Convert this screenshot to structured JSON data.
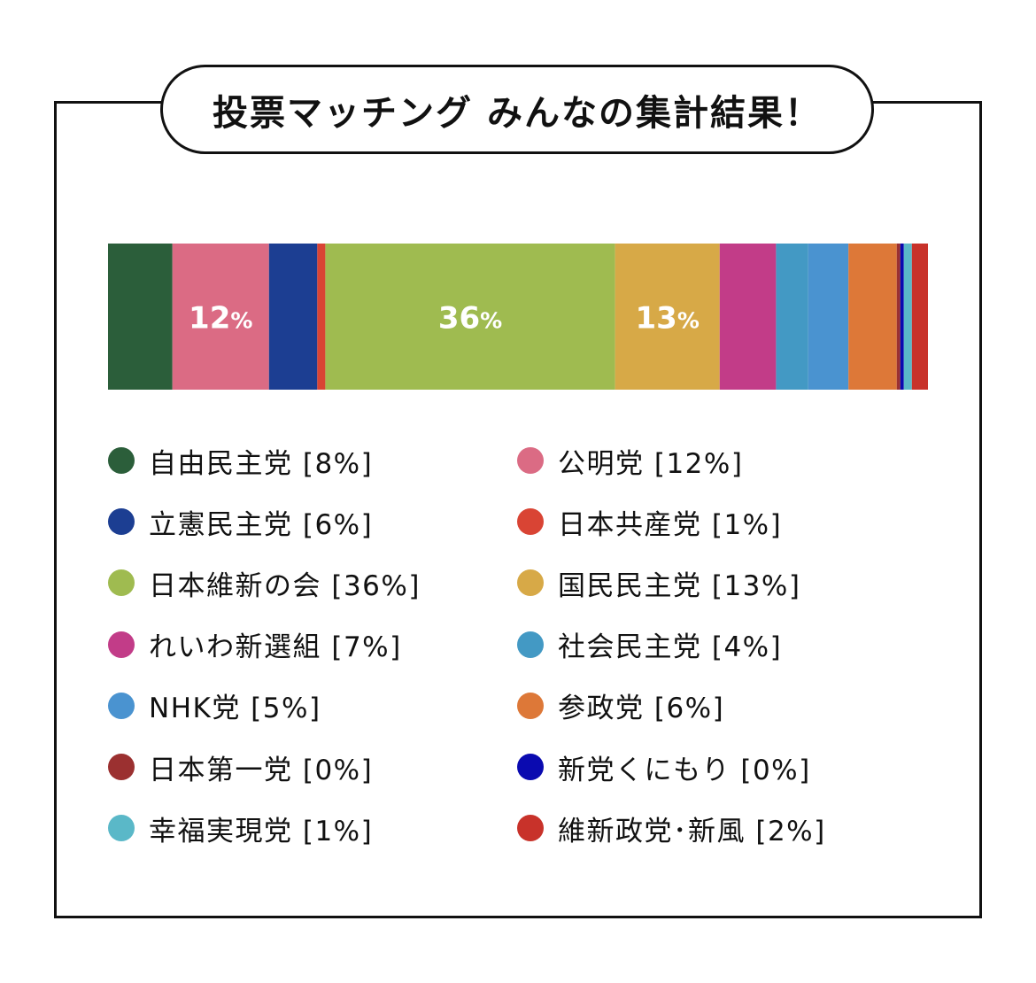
{
  "title": "投票マッチング みんなの集計結果！",
  "chart_data": {
    "type": "bar",
    "stacked": true,
    "orientation": "horizontal",
    "unit": "%",
    "series": [
      {
        "name": "自由民主党",
        "value": 8,
        "color": "#2b5e3a",
        "legend_text": "自由民主党 [8%]",
        "bar_label": ""
      },
      {
        "name": "公明党",
        "value": 12,
        "color": "#db6b84",
        "legend_text": "公明党 [12%]",
        "bar_label": "12%"
      },
      {
        "name": "立憲民主党",
        "value": 6,
        "color": "#1c3e92",
        "legend_text": "立憲民主党 [6%]",
        "bar_label": ""
      },
      {
        "name": "日本共産党",
        "value": 1,
        "color": "#d94434",
        "legend_text": "日本共産党 [1%]",
        "bar_label": ""
      },
      {
        "name": "日本維新の会",
        "value": 36,
        "color": "#9fbb50",
        "legend_text": "日本維新の会 [36%]",
        "bar_label": "36%"
      },
      {
        "name": "国民民主党",
        "value": 13,
        "color": "#d7a947",
        "legend_text": "国民民主党 [13%]",
        "bar_label": "13%"
      },
      {
        "name": "れいわ新選組",
        "value": 7,
        "color": "#c23c88",
        "legend_text": "れいわ新選組 [7%]",
        "bar_label": ""
      },
      {
        "name": "社会民主党",
        "value": 4,
        "color": "#4399c4",
        "legend_text": "社会民主党 [4%]",
        "bar_label": ""
      },
      {
        "name": "NHK党",
        "value": 5,
        "color": "#4a93d0",
        "legend_text": "NHK党 [5%]",
        "bar_label": ""
      },
      {
        "name": "参政党",
        "value": 6,
        "color": "#dd7838",
        "legend_text": "参政党 [6%]",
        "bar_label": ""
      },
      {
        "name": "日本第一党",
        "value": 0,
        "color": "#9b3030",
        "legend_text": "日本第一党 [0%]",
        "bar_label": ""
      },
      {
        "name": "新党くにもり",
        "value": 0,
        "color": "#0a0ab0",
        "legend_text": "新党くにもり [0%]",
        "bar_label": ""
      },
      {
        "name": "幸福実現党",
        "value": 1,
        "color": "#5ab8c8",
        "legend_text": "幸福実現党 [1%]",
        "bar_label": ""
      },
      {
        "name": "維新政党・新風",
        "value": 2,
        "color": "#c8322a",
        "legend_text": "維新政党･新風 [2%]",
        "bar_label": ""
      }
    ]
  }
}
